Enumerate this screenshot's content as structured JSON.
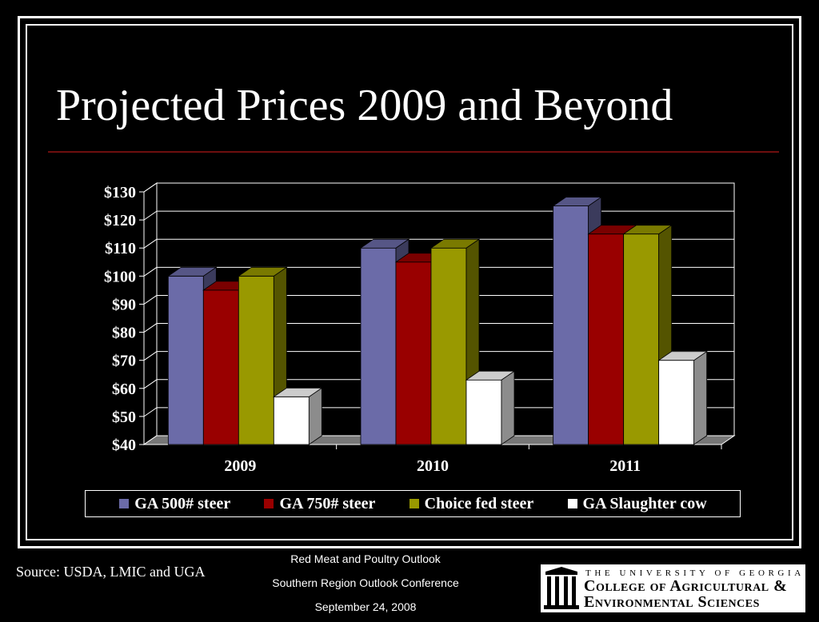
{
  "slide": {
    "title": "Projected Prices 2009 and Beyond",
    "source": "Source: USDA, LMIC and UGA",
    "conference_lines": [
      "Red Meat and Poultry Outlook",
      "Southern Region Outlook Conference",
      "September 24, 2008"
    ],
    "logo": {
      "line1": "THE UNIVERSITY OF GEORGIA",
      "line2": "College of Agricultural &",
      "line3": "Environmental Sciences"
    }
  },
  "chart_data": {
    "type": "bar",
    "categories": [
      "2009",
      "2010",
      "2011"
    ],
    "series": [
      {
        "name": "GA 500# steer",
        "values": [
          100,
          110,
          125
        ],
        "color": "#6b6ba8"
      },
      {
        "name": "GA 750# steer",
        "values": [
          95,
          105,
          115
        ],
        "color": "#990000"
      },
      {
        "name": "Choice fed steer",
        "values": [
          100,
          110,
          115
        ],
        "color": "#999900"
      },
      {
        "name": "GA Slaughter cow",
        "values": [
          57,
          63,
          70
        ],
        "color": "#ffffff"
      }
    ],
    "ylim": [
      40,
      130
    ],
    "yticks": [
      "$40",
      "$50",
      "$60",
      "$70",
      "$80",
      "$90",
      "$100",
      "$110",
      "$120",
      "$130"
    ],
    "title": "",
    "xlabel": "",
    "ylabel": "",
    "grid": true,
    "legend": "bottom",
    "style": "3d-clustered"
  }
}
